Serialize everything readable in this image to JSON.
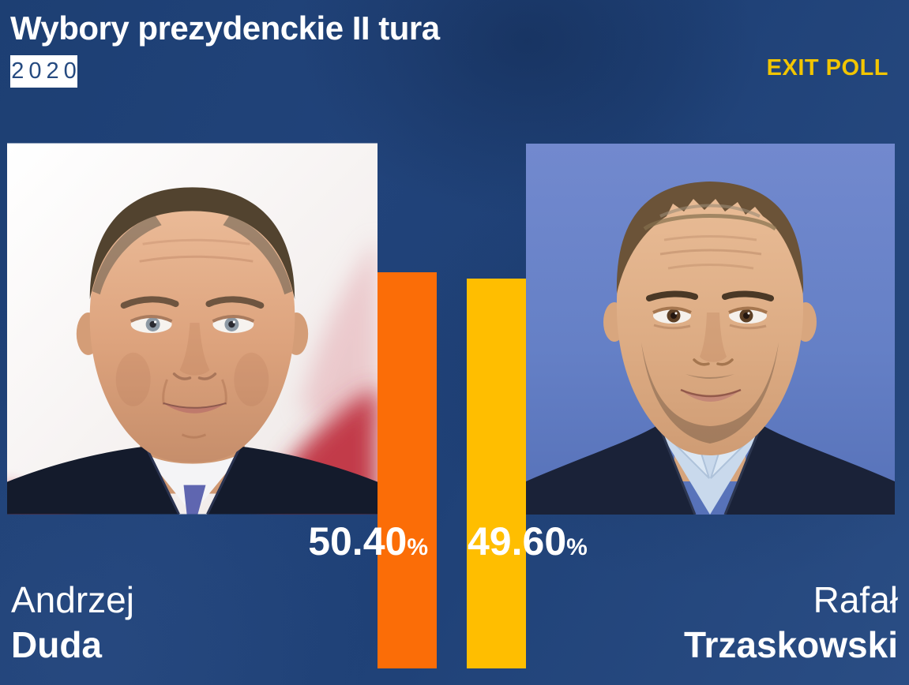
{
  "header": {
    "title": "Wybory prezydenckie II tura",
    "year": "2020",
    "badge": "EXIT POLL"
  },
  "results": [
    {
      "first_name": "Andrzej",
      "last_name": "Duda",
      "percent": "50.40",
      "percent_sign": "%"
    },
    {
      "first_name": "Rafał",
      "last_name": "Trzaskowski",
      "percent": "49.60",
      "percent_sign": "%"
    }
  ],
  "colors": {
    "background_navy": "#20427A",
    "accent_gold": "#F2C500",
    "bar_orange": "#FB6D07",
    "bar_yellow": "#FFBE00",
    "year_text": "#254A80",
    "text_white": "#FFFFFF"
  },
  "chart_data": {
    "type": "bar",
    "title": "Wybory prezydenckie II tura",
    "subtitle": "2020",
    "annotation": "EXIT POLL",
    "categories": [
      "Andrzej Duda",
      "Rafał Trzaskowski"
    ],
    "values": [
      50.4,
      49.6
    ],
    "value_labels": [
      "50.40%",
      "49.60%"
    ],
    "bar_colors": [
      "#FB6D07",
      "#FFBE00"
    ],
    "orientation": "vertical",
    "unit": "percent",
    "legend": false
  }
}
